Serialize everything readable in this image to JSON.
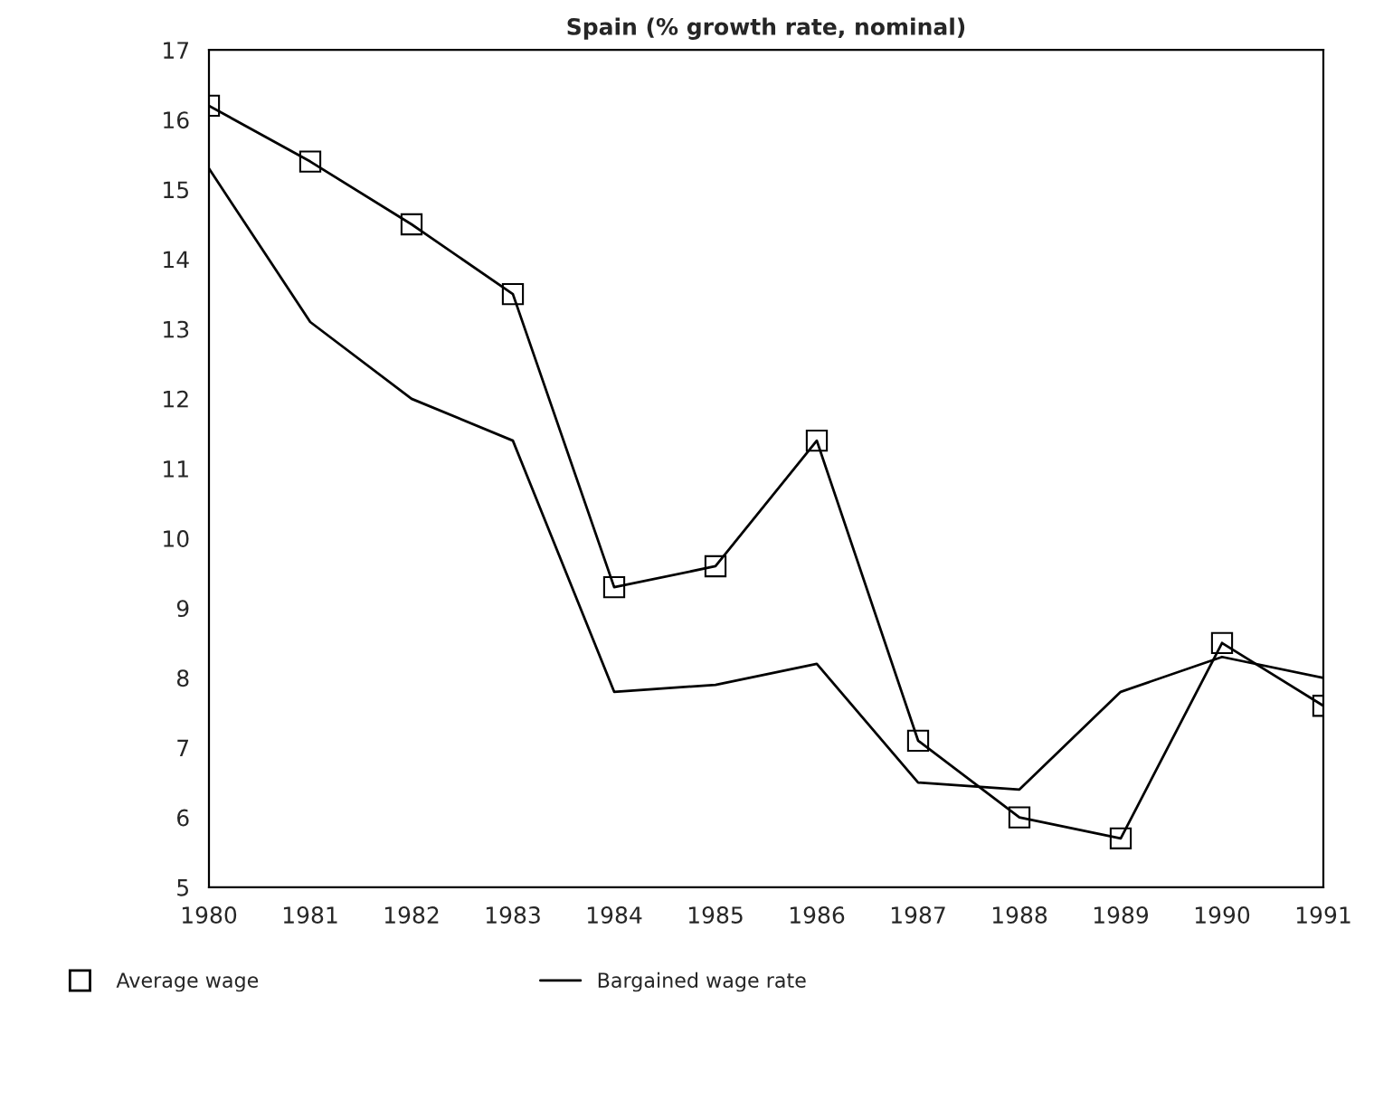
{
  "chart_data": {
    "type": "line",
    "title": "Spain (% growth rate, nominal)",
    "x": [
      1980,
      1981,
      1982,
      1983,
      1984,
      1985,
      1986,
      1987,
      1988,
      1989,
      1990,
      1991
    ],
    "xlim": [
      1980,
      1991
    ],
    "xticks": [
      1980,
      1981,
      1982,
      1983,
      1984,
      1985,
      1986,
      1987,
      1988,
      1989,
      1990,
      1991
    ],
    "ylim": [
      5,
      17
    ],
    "yticks": [
      5,
      6,
      7,
      8,
      9,
      10,
      11,
      12,
      13,
      14,
      15,
      16,
      17
    ],
    "grid": false,
    "legend": "bottom",
    "series": [
      {
        "name": "Average wage",
        "color": "#000000",
        "marker": "square",
        "values": [
          16.2,
          15.4,
          14.5,
          13.5,
          9.3,
          9.6,
          11.4,
          7.1,
          6.0,
          5.7,
          8.5,
          7.6
        ]
      },
      {
        "name": "Bargained wage rate",
        "color": "#000000",
        "marker": "none",
        "values": [
          15.3,
          13.1,
          12.0,
          11.4,
          7.8,
          7.9,
          8.2,
          6.5,
          6.4,
          7.8,
          8.3,
          8.0
        ]
      }
    ]
  }
}
